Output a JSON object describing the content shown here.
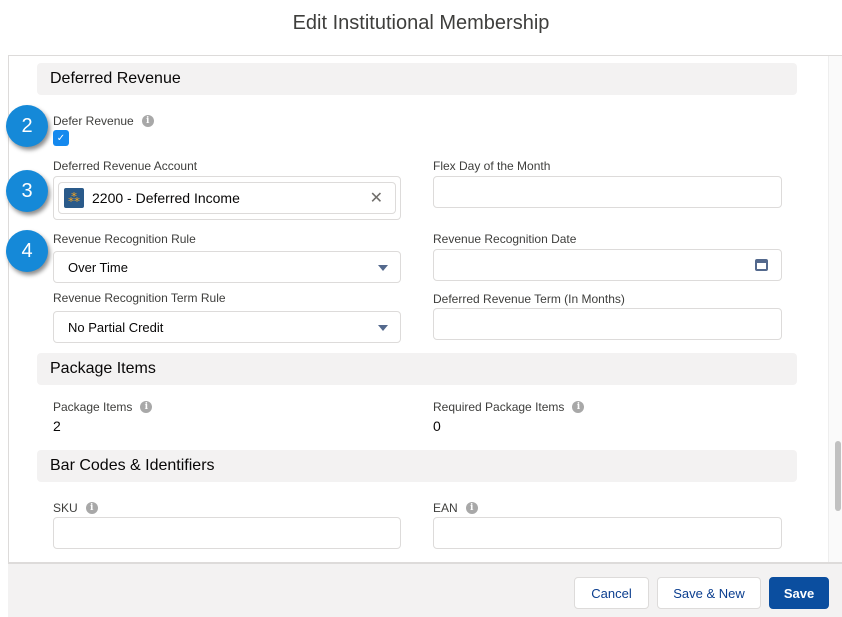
{
  "modal": {
    "title": "Edit Institutional Membership"
  },
  "badges": [
    "2",
    "3",
    "4"
  ],
  "sections": {
    "deferred": {
      "title": "Deferred Revenue",
      "defer_revenue": {
        "label": "Defer Revenue",
        "checked": true
      },
      "account": {
        "label": "Deferred Revenue Account",
        "value": "2200 - Deferred Income"
      },
      "flex_day": {
        "label": "Flex Day of the Month",
        "value": ""
      },
      "rule": {
        "label": "Revenue Recognition Rule",
        "value": "Over Time"
      },
      "date": {
        "label": "Revenue Recognition Date",
        "value": ""
      },
      "term_rule": {
        "label": "Revenue Recognition Term Rule",
        "value": "No Partial Credit"
      },
      "term": {
        "label": "Deferred Revenue Term (In Months)",
        "value": ""
      }
    },
    "package": {
      "title": "Package Items",
      "items": {
        "label": "Package Items",
        "value": "2"
      },
      "required": {
        "label": "Required Package Items",
        "value": "0"
      }
    },
    "barcodes": {
      "title": "Bar Codes & Identifiers",
      "sku": {
        "label": "SKU",
        "value": ""
      },
      "ean": {
        "label": "EAN",
        "value": ""
      }
    }
  },
  "footer": {
    "cancel": "Cancel",
    "save_new": "Save & New",
    "save": "Save"
  },
  "colors": {
    "brand": "#0b4e9f",
    "badge": "#1589d8"
  }
}
